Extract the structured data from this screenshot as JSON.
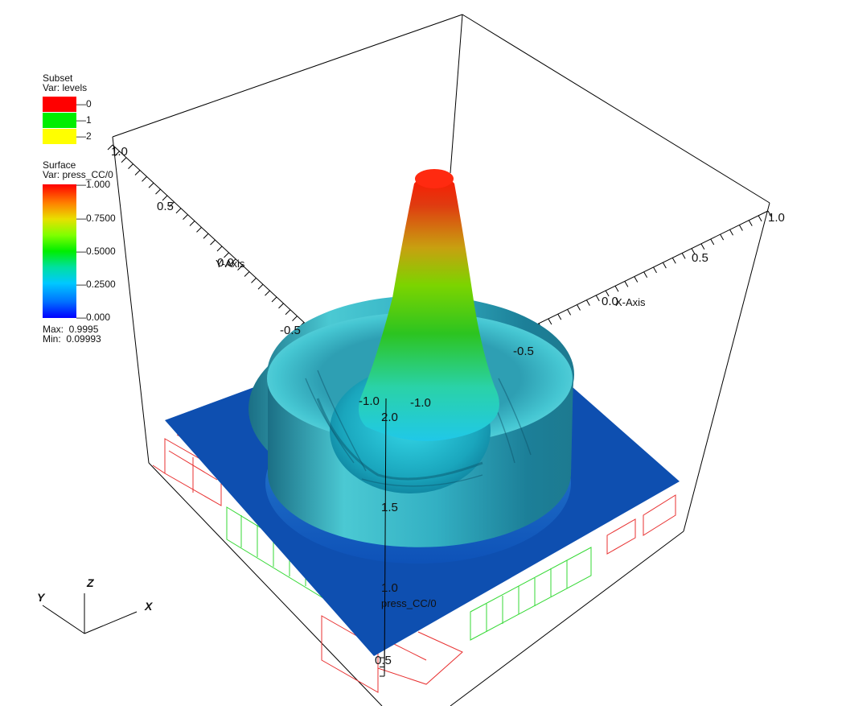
{
  "subset_legend": {
    "title": "Subset",
    "var": "Var: levels",
    "items": [
      {
        "label": "0",
        "color": "#ff0000"
      },
      {
        "label": "1",
        "color": "#00ee00"
      },
      {
        "label": "2",
        "color": "#ffff00"
      }
    ]
  },
  "surface_legend": {
    "title": "Surface",
    "var": "Var: press_CC/0",
    "ticks": [
      "1.000",
      "0.7500",
      "0.5000",
      "0.2500",
      "0.000"
    ],
    "max": "Max:  0.9995",
    "min": "Min:  0.09993"
  },
  "axes": {
    "y_axis_label": "Y-Axis",
    "x_axis_label": "X-Axis",
    "z_axis_label": "press_CC/0",
    "y_ticks": [
      "1.0",
      "0.5",
      "0.0",
      "-0.5",
      "-1.0"
    ],
    "x_ticks": [
      "1.0",
      "0.5",
      "0.0",
      "-0.5",
      "-1.0"
    ],
    "z_ticks": [
      "2.0",
      "1.5",
      "1.0",
      "0.5"
    ]
  },
  "triad": {
    "x": "X",
    "y": "Y",
    "z": "Z"
  },
  "colors": {
    "plane": "#0e4fb0",
    "ring": "#33b8c8",
    "peak": "#ff1a00"
  }
}
